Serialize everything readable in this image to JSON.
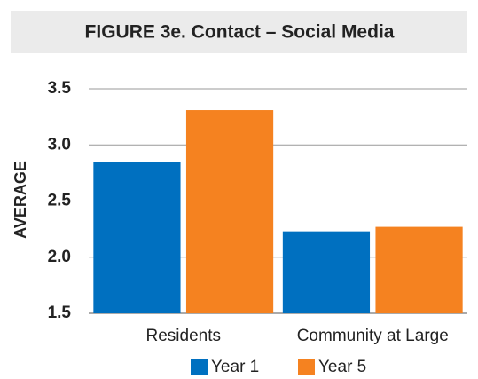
{
  "chart_data": {
    "type": "bar",
    "title": "FIGURE 3e. Contact – Social Media",
    "ylabel": "AVERAGE",
    "categories": [
      "Residents",
      "Community at Large"
    ],
    "series": [
      {
        "name": "Year 1",
        "color": "#0070c0",
        "values": [
          2.85,
          2.23
        ]
      },
      {
        "name": "Year 5",
        "color": "#f58220",
        "values": [
          3.31,
          2.27
        ]
      }
    ],
    "ylim": [
      1.5,
      3.5
    ],
    "yticks": [
      1.5,
      {
        "value": 2,
        "label": "2.0"
      },
      2.5,
      {
        "value": 3,
        "label": "3.0"
      },
      3.5
    ],
    "grid": true,
    "legend": "bottom"
  }
}
